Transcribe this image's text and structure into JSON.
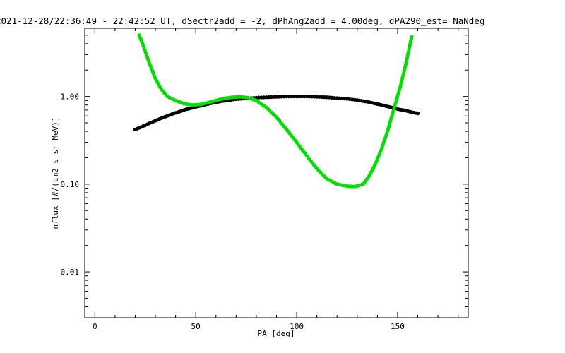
{
  "chart_data": {
    "type": "scatter",
    "title": "2021-12-28/22:36:49 - 22:42:52 UT, dSectr2add = -2, dPhAng2add = 4.00deg, dPA290_est=   NaNdeg",
    "xlabel": "PA [deg]",
    "ylabel": "nflux [#/(cm2 s sr MeV)]",
    "xlim": [
      -5,
      185
    ],
    "ylim": [
      0.003,
      6
    ],
    "yscale": "log",
    "x_ticks": [
      0,
      50,
      100,
      150
    ],
    "x_tick_labels": [
      "0",
      "50",
      "100",
      "150"
    ],
    "y_ticks": [
      0.01,
      0.1,
      1.0
    ],
    "y_tick_labels": [
      "0.01",
      "0.10",
      "1.00"
    ],
    "grid": false,
    "series": [
      {
        "color": "#000000",
        "x": [
          20,
          25,
          30,
          35,
          40,
          45,
          50,
          55,
          60,
          65,
          70,
          75,
          80,
          85,
          90,
          95,
          100,
          105,
          110,
          115,
          120,
          125,
          130,
          135,
          140,
          145,
          150,
          155,
          160
        ],
        "y": [
          0.42,
          0.47,
          0.53,
          0.59,
          0.65,
          0.71,
          0.76,
          0.81,
          0.86,
          0.9,
          0.93,
          0.95,
          0.97,
          0.98,
          0.99,
          1.0,
          1.0,
          1.0,
          0.99,
          0.98,
          0.96,
          0.94,
          0.91,
          0.87,
          0.82,
          0.77,
          0.72,
          0.68,
          0.64
        ]
      },
      {
        "color": "#00e000",
        "x": [
          22,
          24,
          26,
          28,
          30,
          33,
          36,
          40,
          44,
          48,
          52,
          56,
          60,
          64,
          68,
          72,
          76,
          80,
          85,
          90,
          95,
          100,
          105,
          110,
          115,
          120,
          125,
          128,
          130,
          133,
          136,
          139,
          142,
          145,
          148,
          151,
          154,
          157
        ],
        "y": [
          5.0,
          3.8,
          2.8,
          2.1,
          1.6,
          1.2,
          1.0,
          0.9,
          0.83,
          0.8,
          0.81,
          0.85,
          0.9,
          0.95,
          0.98,
          0.99,
          0.97,
          0.9,
          0.75,
          0.58,
          0.42,
          0.3,
          0.21,
          0.15,
          0.115,
          0.1,
          0.095,
          0.094,
          0.095,
          0.1,
          0.125,
          0.17,
          0.25,
          0.4,
          0.7,
          1.2,
          2.3,
          4.8
        ]
      }
    ]
  }
}
